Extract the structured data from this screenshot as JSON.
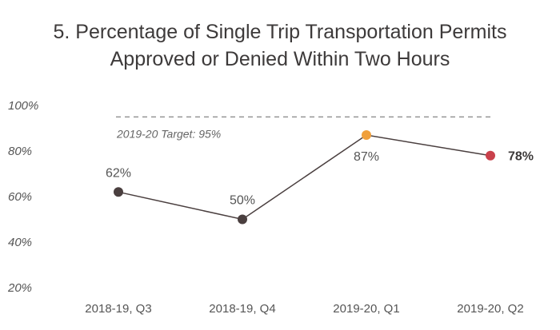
{
  "chart_data": {
    "type": "line",
    "title": "5. Percentage of Single Trip Transportation Permits",
    "subtitle": "Approved or Denied Within Two Hours",
    "categories": [
      "2018-19, Q3",
      "2018-19, Q4",
      "2019-20, Q1",
      "2019-20, Q2"
    ],
    "series": [
      {
        "values": [
          62,
          50,
          87,
          78
        ],
        "labels": [
          "62%",
          "50%",
          "87%",
          "78%"
        ],
        "point_colors": [
          "#4a3f3f",
          "#4a3f3f",
          "#f0a03c",
          "#c9414b"
        ],
        "line_color": "#4a3f3f"
      }
    ],
    "ylim": [
      20,
      100
    ],
    "yticks": [
      20,
      40,
      60,
      80,
      100
    ],
    "ytick_labels": [
      "20%",
      "40%",
      "60%",
      "80%",
      "100%"
    ],
    "target": {
      "value": 95,
      "label": "2019-20 Target: 95%"
    },
    "grid": false,
    "legend": "none"
  }
}
